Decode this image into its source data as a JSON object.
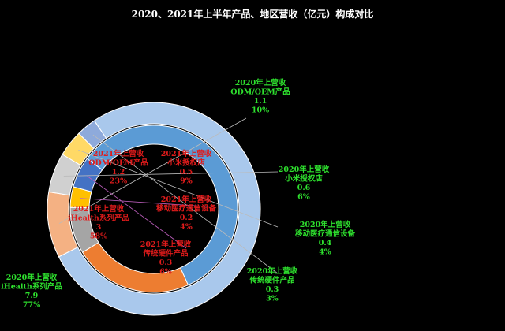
{
  "chart_data": {
    "type": "pie",
    "title": "2020、2021年上半年产品、地区营收（亿元）构成对比",
    "rings": [
      {
        "name": "2020年上营收",
        "ring": "outer",
        "label_color": "#2ee02e",
        "slices": [
          {
            "category": "iHealth系列产品",
            "value": 7.9,
            "percent": "77%",
            "color": "#a9c8ec"
          },
          {
            "category": "ODM/OEM产品",
            "value": 1.1,
            "percent": "10%",
            "color": "#f4b183"
          },
          {
            "category": "小米授权店",
            "value": 0.6,
            "percent": "6%",
            "color": "#d0d0d0"
          },
          {
            "category": "移动医疗通信设备",
            "value": 0.4,
            "percent": "4%",
            "color": "#ffd966"
          },
          {
            "category": "传统硬件产品",
            "value": 0.3,
            "percent": "3%",
            "color": "#8eaadb"
          }
        ]
      },
      {
        "name": "2021年上营收",
        "ring": "inner",
        "label_color": "#e01b1b",
        "slices": [
          {
            "category": "iHealth系列产品",
            "value": 3.0,
            "percent": "58%",
            "color": "#5b9bd5"
          },
          {
            "category": "ODM/OEM产品",
            "value": 1.2,
            "percent": "23%",
            "color": "#ed7d31"
          },
          {
            "category": "小米授权店",
            "value": 0.5,
            "percent": "9%",
            "color": "#a5a5a5"
          },
          {
            "category": "移动医疗通信设备",
            "value": 0.2,
            "percent": "4%",
            "color": "#ffc000"
          },
          {
            "category": "传统硬件产品",
            "value": 0.3,
            "percent": "6%",
            "color": "#4472c4"
          }
        ]
      }
    ]
  }
}
